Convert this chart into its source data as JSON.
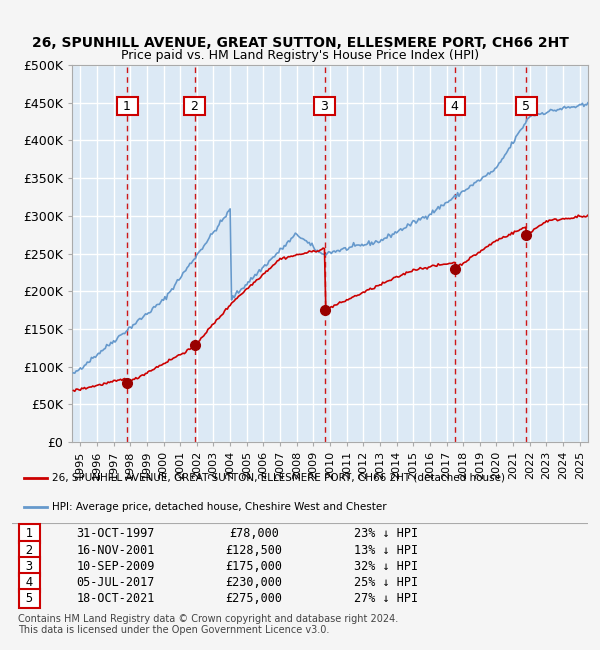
{
  "title1": "26, SPUNHILL AVENUE, GREAT SUTTON, ELLESMERE PORT, CH66 2HT",
  "title2": "Price paid vs. HM Land Registry's House Price Index (HPI)",
  "ylabel": "",
  "ylim": [
    0,
    500000
  ],
  "yticks": [
    0,
    50000,
    100000,
    150000,
    200000,
    250000,
    300000,
    350000,
    400000,
    450000,
    500000
  ],
  "ytick_labels": [
    "£0",
    "£50K",
    "£100K",
    "£150K",
    "£200K",
    "£250K",
    "£300K",
    "£350K",
    "£400K",
    "£450K",
    "£500K"
  ],
  "xlim_start": 1994.5,
  "xlim_end": 2025.5,
  "transactions": [
    {
      "num": 1,
      "date_str": "31-OCT-1997",
      "price": 78000,
      "pct": "23%",
      "x_year": 1997.83
    },
    {
      "num": 2,
      "date_str": "16-NOV-2001",
      "price": 128500,
      "pct": "13%",
      "x_year": 2001.88
    },
    {
      "num": 3,
      "date_str": "10-SEP-2009",
      "price": 175000,
      "pct": "32%",
      "x_year": 2009.69
    },
    {
      "num": 4,
      "date_str": "05-JUL-2017",
      "price": 230000,
      "pct": "25%",
      "x_year": 2017.51
    },
    {
      "num": 5,
      "date_str": "18-OCT-2021",
      "price": 275000,
      "pct": "27%",
      "x_year": 2021.8
    }
  ],
  "legend_house": "26, SPUNHILL AVENUE, GREAT SUTTON, ELLESMERE PORT, CH66 2HT (detached house)",
  "legend_hpi": "HPI: Average price, detached house, Cheshire West and Chester",
  "footer1": "Contains HM Land Registry data © Crown copyright and database right 2024.",
  "footer2": "This data is licensed under the Open Government Licence v3.0.",
  "bg_color": "#dce9f5",
  "plot_bg_color": "#dce9f5",
  "grid_color": "#ffffff",
  "house_line_color": "#cc0000",
  "hpi_line_color": "#6699cc",
  "dashed_color": "#cc0000",
  "marker_color": "#990000",
  "number_box_color": "#cc0000"
}
